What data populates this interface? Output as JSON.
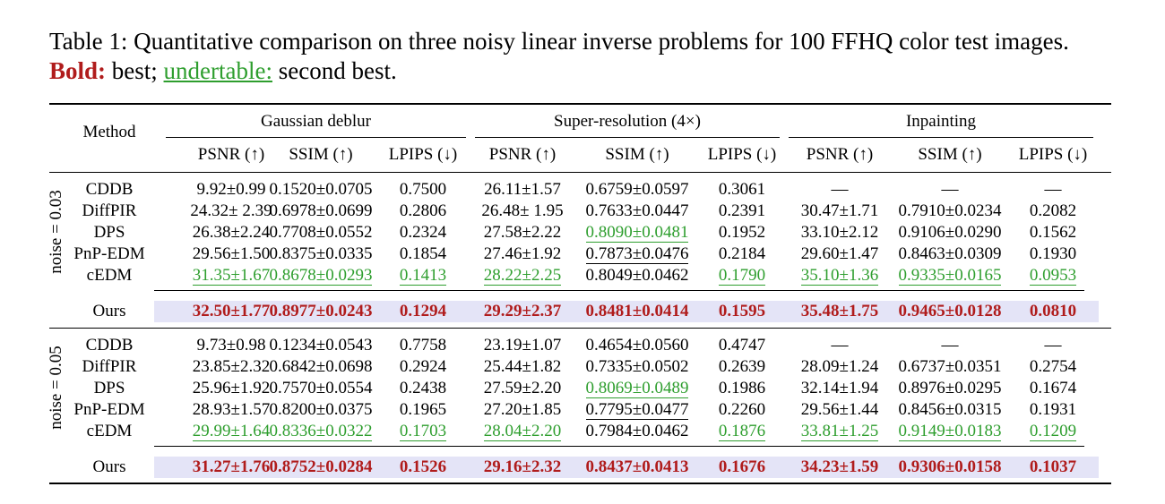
{
  "caption": {
    "prefix": "Table 1: Quantitative comparison on three noisy linear inverse problems for 100 FFHQ color test images. ",
    "bold_label": "Bold:",
    "after_bold": " best; ",
    "underline_label": "undertable:",
    "after_underline": " second best."
  },
  "header": {
    "method": "Method",
    "groups": [
      "Gaussian deblur",
      "Super-resolution (4×)",
      "Inpainting"
    ],
    "metrics": [
      "PSNR (↑)",
      "SSIM (↑)",
      "LPIPS (↓)",
      "PSNR (↑)",
      "SSIM (↑)",
      "LPIPS (↓)",
      "PSNR (↑)",
      "SSIM (↑)",
      "LPIPS (↓)"
    ]
  },
  "blocks": [
    {
      "noise_label": "noise = 0.03",
      "rows": [
        {
          "method": "CDDB",
          "cells": [
            "9.92±0.99",
            "0.1520±0.0705",
            "0.7500",
            "26.11±1.57",
            "0.6759±0.0597",
            "0.3061",
            "—",
            "—",
            "—"
          ]
        },
        {
          "method": "DiffPIR",
          "cells": [
            "24.32± 2.39",
            "0.6978±0.0699",
            "0.2806",
            "26.48± 1.95",
            "0.7633±0.0447",
            "0.2391",
            "30.47±1.71",
            "0.7910±0.0234",
            "0.2082"
          ]
        },
        {
          "method": "DPS",
          "cells": [
            "26.38±2.24",
            "0.7708±0.0552",
            "0.2324",
            "27.58±2.22",
            "0.8090±0.0481",
            "0.1952",
            "33.10±2.12",
            "0.9106±0.0290",
            "0.1562"
          ]
        },
        {
          "method": "PnP-EDM",
          "cells": [
            "29.56±1.50",
            "0.8375±0.0335",
            "0.1854",
            "27.46±1.92",
            "0.7873±0.0476",
            "0.2184",
            "29.60±1.47",
            "0.8463±0.0309",
            "0.1930"
          ]
        },
        {
          "method": "cEDM",
          "cells": [
            "31.35±1.67",
            "0.8678±0.0293",
            "0.1413",
            "28.22±2.25",
            "0.8049±0.0462",
            "0.1790",
            "35.10±1.36",
            "0.9335±0.0165",
            "0.0953"
          ]
        }
      ],
      "ours": {
        "method": "Ours",
        "cells": [
          "32.50±1.77",
          "0.8977±0.0243",
          "0.1294",
          "29.29±2.37",
          "0.8481±0.0414",
          "0.1595",
          "35.48±1.75",
          "0.9465±0.0128",
          "0.0810"
        ]
      }
    },
    {
      "noise_label": "noise = 0.05",
      "rows": [
        {
          "method": "CDDB",
          "cells": [
            "9.73±0.98",
            "0.1234±0.0543",
            "0.7758",
            "23.19±1.07",
            "0.4654±0.0560",
            "0.4747",
            "—",
            "—",
            "—"
          ]
        },
        {
          "method": "DiffPIR",
          "cells": [
            "23.85±2.32",
            "0.6842±0.0698",
            "0.2924",
            "25.44±1.82",
            "0.7335±0.0502",
            "0.2639",
            "28.09±1.24",
            "0.6737±0.0351",
            "0.2754"
          ]
        },
        {
          "method": "DPS",
          "cells": [
            "25.96±1.92",
            "0.7570±0.0554",
            "0.2438",
            "27.59±2.20",
            "0.8069±0.0489",
            "0.1986",
            "32.14±1.94",
            "0.8976±0.0295",
            "0.1674"
          ]
        },
        {
          "method": "PnP-EDM",
          "cells": [
            "28.93±1.57",
            "0.8200±0.0375",
            "0.1965",
            "27.20±1.85",
            "0.7795±0.0477",
            "0.2260",
            "29.56±1.44",
            "0.8456±0.0315",
            "0.1931"
          ]
        },
        {
          "method": "cEDM",
          "cells": [
            "29.99±1.64",
            "0.8336±0.0322",
            "0.1703",
            "28.04±2.20",
            "0.7984±0.0462",
            "0.1876",
            "33.81±1.25",
            "0.9149±0.0183",
            "0.1209"
          ]
        }
      ],
      "ours": {
        "method": "Ours",
        "cells": [
          "31.27±1.76",
          "0.8752±0.0284",
          "0.1526",
          "29.16±2.32",
          "0.8437±0.0413",
          "0.1676",
          "34.23±1.59",
          "0.9306±0.0158",
          "0.1037"
        ]
      }
    }
  ],
  "styles": {
    "green_underline_cells": [
      [
        0,
        2,
        4
      ],
      [
        0,
        4,
        0
      ],
      [
        0,
        4,
        1
      ],
      [
        0,
        4,
        2
      ],
      [
        0,
        4,
        3
      ],
      [
        0,
        4,
        5
      ],
      [
        0,
        4,
        6
      ],
      [
        0,
        4,
        7
      ],
      [
        0,
        4,
        8
      ],
      [
        1,
        2,
        4
      ],
      [
        1,
        4,
        0
      ],
      [
        1,
        4,
        1
      ],
      [
        1,
        4,
        2
      ],
      [
        1,
        4,
        3
      ],
      [
        1,
        4,
        5
      ],
      [
        1,
        4,
        6
      ],
      [
        1,
        4,
        7
      ],
      [
        1,
        4,
        8
      ]
    ],
    "black_underline_cells": [
      [
        0,
        3,
        4
      ],
      [
        1,
        3,
        4
      ]
    ],
    "colors": {
      "best": "#b01c1c",
      "second": "#2e9e2e",
      "ours_bg": "#e4e4f7"
    }
  }
}
